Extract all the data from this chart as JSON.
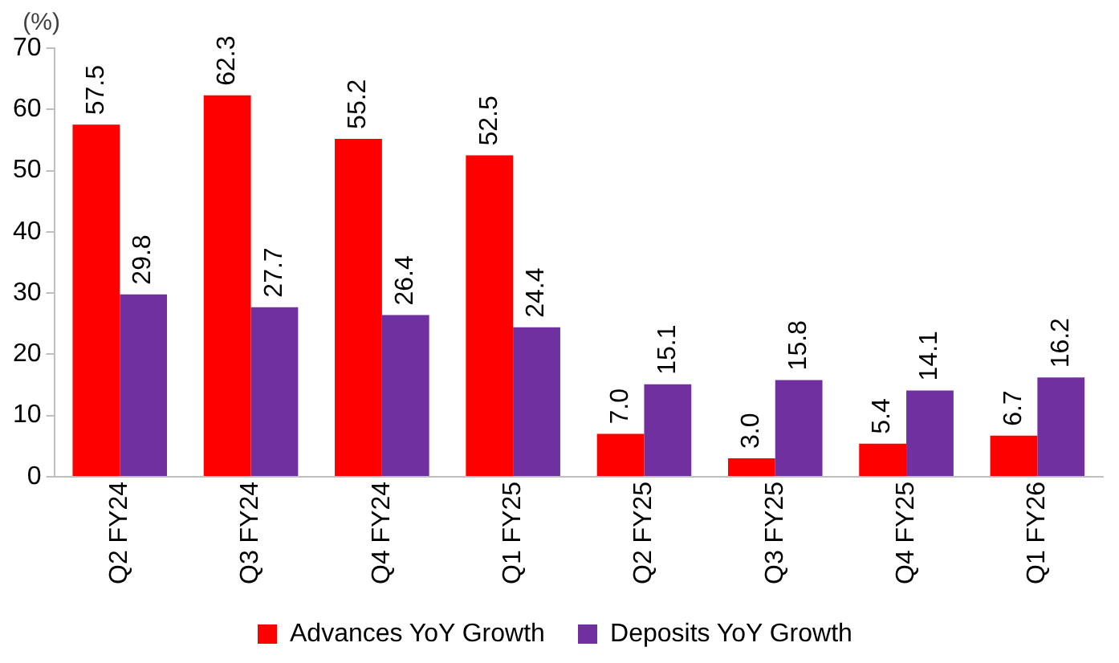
{
  "chart_data": {
    "type": "bar",
    "ylabel": "(%)",
    "categories": [
      "Q2 FY24",
      "Q3 FY24",
      "Q4 FY24",
      "Q1 FY25",
      "Q2 FY25",
      "Q3 FY25",
      "Q4 FY25",
      "Q1 FY26"
    ],
    "series": [
      {
        "name": "Advances YoY Growth",
        "color": "#ff0000",
        "values": [
          57.5,
          62.3,
          55.2,
          52.5,
          7.0,
          3.0,
          5.4,
          6.7
        ],
        "value_labels": [
          "57.5",
          "62.3",
          "55.2",
          "52.5",
          "7.0",
          "3.0",
          "5.4",
          "6.7"
        ]
      },
      {
        "name": "Deposits YoY Growth",
        "color": "#7030a0",
        "values": [
          29.8,
          27.7,
          26.4,
          24.4,
          15.1,
          15.8,
          14.1,
          16.2
        ],
        "value_labels": [
          "29.8",
          "27.7",
          "26.4",
          "24.4",
          "15.1",
          "15.8",
          "14.1",
          "16.2"
        ]
      }
    ],
    "ylim": [
      0,
      70
    ],
    "yticks": [
      0,
      10,
      20,
      30,
      40,
      50,
      60,
      70
    ],
    "grid": false,
    "legend": "bottom"
  }
}
